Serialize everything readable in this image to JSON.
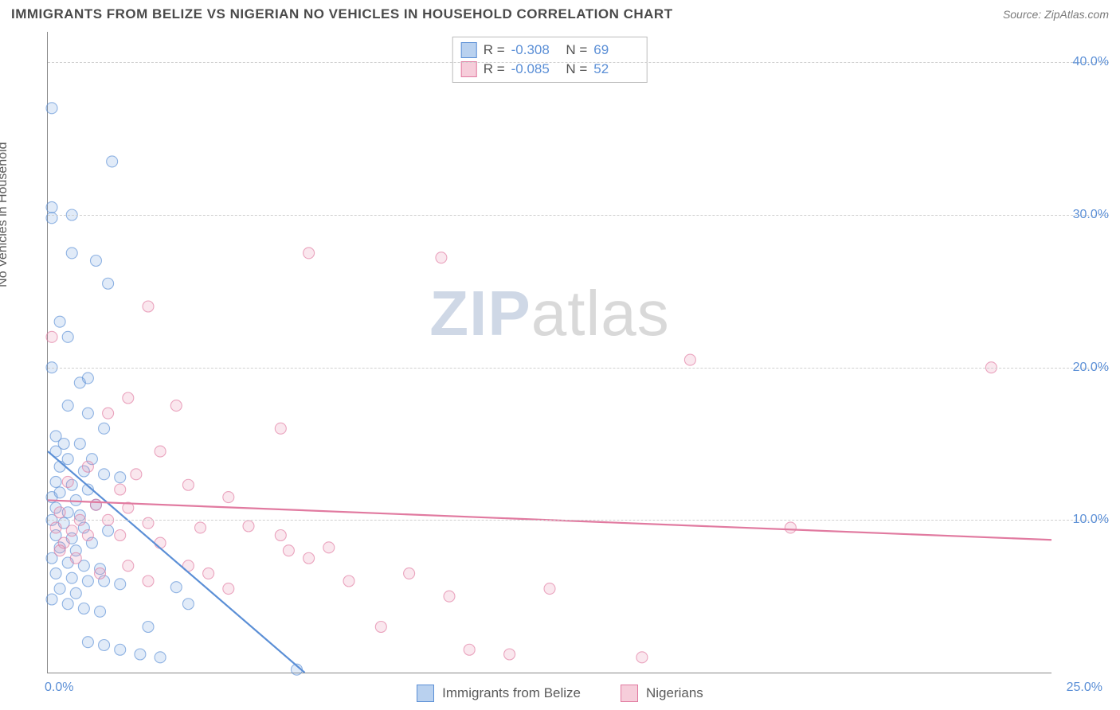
{
  "title": "IMMIGRANTS FROM BELIZE VS NIGERIAN NO VEHICLES IN HOUSEHOLD CORRELATION CHART",
  "source_label": "Source: ZipAtlas.com",
  "y_axis_label": "No Vehicles in Household",
  "watermark_bold": "ZIP",
  "watermark_light": "atlas",
  "chart": {
    "type": "scatter",
    "xlim": [
      0,
      25
    ],
    "ylim": [
      0,
      42
    ],
    "x_ticks": [
      {
        "pos": 0,
        "label": "0.0%"
      },
      {
        "pos": 25,
        "label": "25.0%"
      }
    ],
    "y_gridlines": [
      10,
      20,
      30,
      40
    ],
    "y_tick_labels": [
      {
        "pos": 10,
        "label": "10.0%"
      },
      {
        "pos": 20,
        "label": "20.0%"
      },
      {
        "pos": 30,
        "label": "30.0%"
      },
      {
        "pos": 40,
        "label": "40.0%"
      }
    ],
    "background_color": "#ffffff",
    "grid_color": "#d0d0d0",
    "axis_color": "#888888",
    "marker_radius": 7,
    "marker_fill_opacity": 0.18,
    "marker_stroke_opacity": 0.65,
    "marker_stroke_width": 1.1,
    "series": [
      {
        "name": "Immigrants from Belize",
        "color": "#5b8fd6",
        "fill": "#b9d1ef",
        "R": "-0.308",
        "N": "69",
        "trend": {
          "x1": 0,
          "y1": 14.5,
          "x2": 6.4,
          "y2": 0,
          "width": 2.2
        },
        "points": [
          [
            0.1,
            37.0
          ],
          [
            1.6,
            33.5
          ],
          [
            0.1,
            30.5
          ],
          [
            0.6,
            30.0
          ],
          [
            0.1,
            29.8
          ],
          [
            0.6,
            27.5
          ],
          [
            1.2,
            27.0
          ],
          [
            1.5,
            25.5
          ],
          [
            0.3,
            23.0
          ],
          [
            0.5,
            22.0
          ],
          [
            0.1,
            20.0
          ],
          [
            0.8,
            19.0
          ],
          [
            1.0,
            19.3
          ],
          [
            0.5,
            17.5
          ],
          [
            1.0,
            17.0
          ],
          [
            1.4,
            16.0
          ],
          [
            0.2,
            15.5
          ],
          [
            0.4,
            15.0
          ],
          [
            0.8,
            15.0
          ],
          [
            0.2,
            14.5
          ],
          [
            0.5,
            14.0
          ],
          [
            1.1,
            14.0
          ],
          [
            0.3,
            13.5
          ],
          [
            0.9,
            13.2
          ],
          [
            1.4,
            13.0
          ],
          [
            1.8,
            12.8
          ],
          [
            0.2,
            12.5
          ],
          [
            0.6,
            12.3
          ],
          [
            1.0,
            12.0
          ],
          [
            0.3,
            11.8
          ],
          [
            0.1,
            11.5
          ],
          [
            0.7,
            11.3
          ],
          [
            1.2,
            11.0
          ],
          [
            0.2,
            10.8
          ],
          [
            0.5,
            10.5
          ],
          [
            0.8,
            10.3
          ],
          [
            0.1,
            10.0
          ],
          [
            0.4,
            9.8
          ],
          [
            0.9,
            9.5
          ],
          [
            1.5,
            9.3
          ],
          [
            0.2,
            9.0
          ],
          [
            0.6,
            8.8
          ],
          [
            1.1,
            8.5
          ],
          [
            0.3,
            8.2
          ],
          [
            0.7,
            8.0
          ],
          [
            0.1,
            7.5
          ],
          [
            0.5,
            7.2
          ],
          [
            0.9,
            7.0
          ],
          [
            1.3,
            6.8
          ],
          [
            0.2,
            6.5
          ],
          [
            0.6,
            6.2
          ],
          [
            1.0,
            6.0
          ],
          [
            1.4,
            6.0
          ],
          [
            1.8,
            5.8
          ],
          [
            0.3,
            5.5
          ],
          [
            0.7,
            5.2
          ],
          [
            0.1,
            4.8
          ],
          [
            0.5,
            4.5
          ],
          [
            0.9,
            4.2
          ],
          [
            1.3,
            4.0
          ],
          [
            3.2,
            5.6
          ],
          [
            2.5,
            3.0
          ],
          [
            1.0,
            2.0
          ],
          [
            1.4,
            1.8
          ],
          [
            1.8,
            1.5
          ],
          [
            2.3,
            1.2
          ],
          [
            2.8,
            1.0
          ],
          [
            3.5,
            4.5
          ],
          [
            6.2,
            0.2
          ]
        ]
      },
      {
        "name": "Nigerians",
        "color": "#e17aa0",
        "fill": "#f6cdda",
        "R": "-0.085",
        "N": "52",
        "trend": {
          "x1": 0,
          "y1": 11.3,
          "x2": 25,
          "y2": 8.7,
          "width": 2.2
        },
        "points": [
          [
            0.1,
            22.0
          ],
          [
            6.5,
            27.5
          ],
          [
            9.8,
            27.2
          ],
          [
            2.5,
            24.0
          ],
          [
            2.0,
            18.0
          ],
          [
            3.2,
            17.5
          ],
          [
            1.5,
            17.0
          ],
          [
            5.8,
            16.0
          ],
          [
            2.8,
            14.5
          ],
          [
            1.0,
            13.5
          ],
          [
            2.2,
            13.0
          ],
          [
            0.5,
            12.5
          ],
          [
            1.8,
            12.0
          ],
          [
            3.5,
            12.3
          ],
          [
            4.5,
            11.5
          ],
          [
            1.2,
            11.0
          ],
          [
            0.3,
            10.5
          ],
          [
            2.0,
            10.8
          ],
          [
            0.8,
            10.0
          ],
          [
            1.5,
            10.0
          ],
          [
            2.5,
            9.8
          ],
          [
            3.8,
            9.5
          ],
          [
            0.2,
            9.5
          ],
          [
            0.6,
            9.3
          ],
          [
            1.0,
            9.0
          ],
          [
            1.8,
            9.0
          ],
          [
            2.8,
            8.5
          ],
          [
            0.4,
            8.5
          ],
          [
            3.5,
            7.0
          ],
          [
            5.0,
            9.6
          ],
          [
            5.8,
            9.0
          ],
          [
            6.0,
            8.0
          ],
          [
            6.5,
            7.5
          ],
          [
            7.0,
            8.2
          ],
          [
            7.5,
            6.0
          ],
          [
            8.3,
            3.0
          ],
          [
            9.0,
            6.5
          ],
          [
            10.0,
            5.0
          ],
          [
            10.5,
            1.5
          ],
          [
            11.5,
            1.2
          ],
          [
            12.5,
            5.5
          ],
          [
            16.0,
            20.5
          ],
          [
            23.5,
            20.0
          ],
          [
            18.5,
            9.5
          ],
          [
            2.0,
            7.0
          ],
          [
            2.5,
            6.0
          ],
          [
            4.0,
            6.5
          ],
          [
            4.5,
            5.5
          ],
          [
            0.3,
            8.0
          ],
          [
            0.7,
            7.5
          ],
          [
            14.8,
            1.0
          ],
          [
            1.3,
            6.5
          ]
        ]
      }
    ]
  },
  "legend_bottom": [
    {
      "label": "Immigrants from Belize",
      "fill": "#b9d1ef",
      "stroke": "#5b8fd6"
    },
    {
      "label": "Nigerians",
      "fill": "#f6cdda",
      "stroke": "#e17aa0"
    }
  ]
}
